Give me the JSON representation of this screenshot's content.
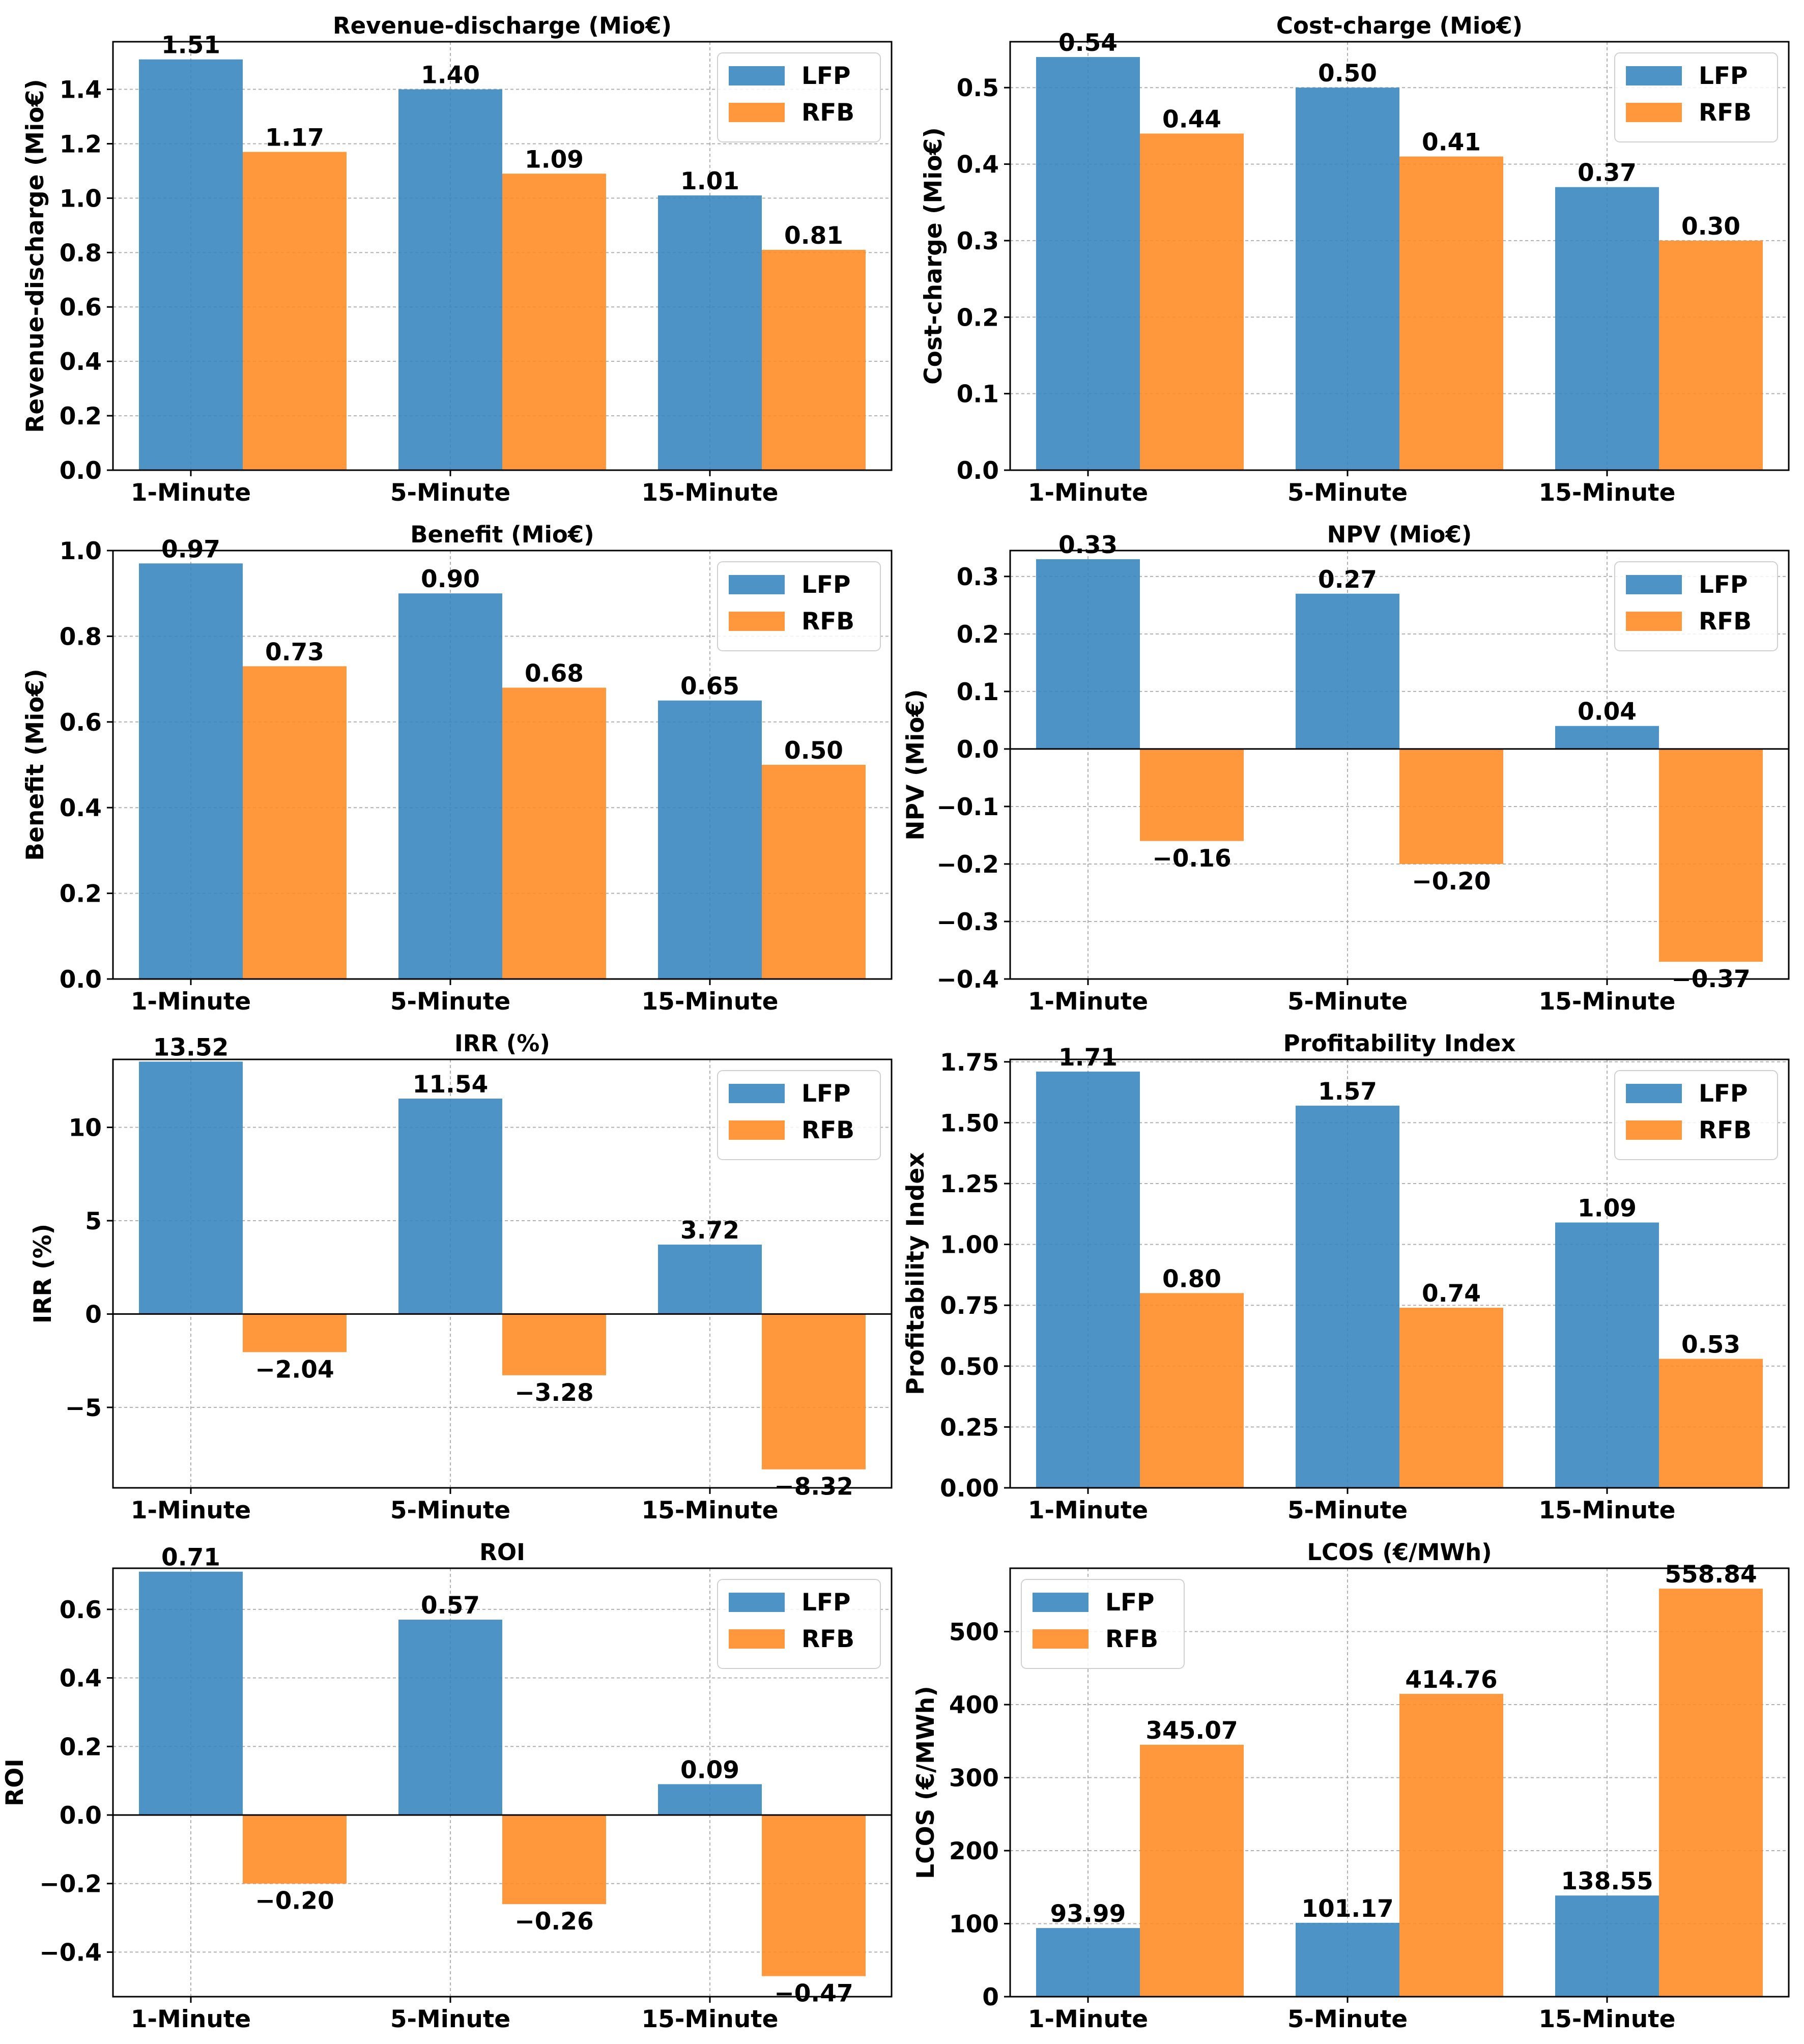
{
  "colors": {
    "lfp": "#3a87c0",
    "rfb": "#ff8c28",
    "grid": "#b0b0b0",
    "axis": "#000000"
  },
  "chart_data": [
    {
      "type": "bar",
      "title": "Revenue-discharge (Mio€)",
      "ylabel": "Revenue-discharge (Mio€)",
      "xlabel": "",
      "categories": [
        "1-Minute",
        "5-Minute",
        "15-Minute"
      ],
      "series": [
        {
          "name": "LFP",
          "values": [
            1.51,
            1.4,
            1.01
          ],
          "labels": [
            "1.51",
            "1.40",
            "1.01"
          ]
        },
        {
          "name": "RFB",
          "values": [
            1.17,
            1.09,
            0.81
          ],
          "labels": [
            "1.17",
            "1.09",
            "0.81"
          ]
        }
      ],
      "ylim": [
        0,
        1.575
      ],
      "yticks": [
        0.0,
        0.2,
        0.4,
        0.6,
        0.8,
        1.0,
        1.2,
        1.4
      ],
      "ytick_labels": [
        "0.0",
        "0.2",
        "0.4",
        "0.6",
        "0.8",
        "1.0",
        "1.2",
        "1.4"
      ],
      "legend": "top-right",
      "grid": true
    },
    {
      "type": "bar",
      "title": "Cost-charge (Mio€)",
      "ylabel": "Cost-charge (Mio€)",
      "xlabel": "",
      "categories": [
        "1-Minute",
        "5-Minute",
        "15-Minute"
      ],
      "series": [
        {
          "name": "LFP",
          "values": [
            0.54,
            0.5,
            0.37
          ],
          "labels": [
            "0.54",
            "0.50",
            "0.37"
          ]
        },
        {
          "name": "RFB",
          "values": [
            0.44,
            0.41,
            0.3
          ],
          "labels": [
            "0.44",
            "0.41",
            "0.30"
          ]
        }
      ],
      "ylim": [
        0,
        0.56
      ],
      "yticks": [
        0.0,
        0.1,
        0.2,
        0.3,
        0.4,
        0.5
      ],
      "ytick_labels": [
        "0.0",
        "0.1",
        "0.2",
        "0.3",
        "0.4",
        "0.5"
      ],
      "legend": "top-right",
      "grid": true
    },
    {
      "type": "bar",
      "title": "Benefit (Mio€)",
      "ylabel": "Benefit (Mio€)",
      "xlabel": "",
      "categories": [
        "1-Minute",
        "5-Minute",
        "15-Minute"
      ],
      "series": [
        {
          "name": "LFP",
          "values": [
            0.97,
            0.9,
            0.65
          ],
          "labels": [
            "0.97",
            "0.90",
            "0.65"
          ]
        },
        {
          "name": "RFB",
          "values": [
            0.73,
            0.68,
            0.5
          ],
          "labels": [
            "0.73",
            "0.68",
            "0.50"
          ]
        }
      ],
      "ylim": [
        0,
        1.0
      ],
      "yticks": [
        0.0,
        0.2,
        0.4,
        0.6,
        0.8,
        1.0
      ],
      "ytick_labels": [
        "0.0",
        "0.2",
        "0.4",
        "0.6",
        "0.8",
        "1.0"
      ],
      "legend": "top-right",
      "grid": true
    },
    {
      "type": "bar",
      "title": "NPV (Mio€)",
      "ylabel": "NPV (Mio€)",
      "xlabel": "",
      "categories": [
        "1-Minute",
        "5-Minute",
        "15-Minute"
      ],
      "series": [
        {
          "name": "LFP",
          "values": [
            0.33,
            0.27,
            0.04
          ],
          "labels": [
            "0.33",
            "0.27",
            "0.04"
          ]
        },
        {
          "name": "RFB",
          "values": [
            -0.16,
            -0.2,
            -0.37
          ],
          "labels": [
            "−0.16",
            "−0.20",
            "−0.37"
          ]
        }
      ],
      "ylim": [
        -0.4,
        0.345
      ],
      "yticks": [
        -0.4,
        -0.3,
        -0.2,
        -0.1,
        0.0,
        0.1,
        0.2,
        0.3
      ],
      "ytick_labels": [
        "−0.4",
        "−0.3",
        "−0.2",
        "−0.1",
        "0.0",
        "0.1",
        "0.2",
        "0.3"
      ],
      "legend": "top-right",
      "grid": true,
      "zero_line": true
    },
    {
      "type": "bar",
      "title": "IRR (%)",
      "ylabel": "IRR (%)",
      "xlabel": "",
      "categories": [
        "1-Minute",
        "5-Minute",
        "15-Minute"
      ],
      "series": [
        {
          "name": "LFP",
          "values": [
            13.52,
            11.54,
            3.72
          ],
          "labels": [
            "13.52",
            "11.54",
            "3.72"
          ]
        },
        {
          "name": "RFB",
          "values": [
            -2.04,
            -3.28,
            -8.32
          ],
          "labels": [
            "−2.04",
            "−3.28",
            "−8.32"
          ]
        }
      ],
      "ylim": [
        -9.31,
        13.64
      ],
      "yticks": [
        -5,
        0,
        5,
        10
      ],
      "ytick_labels": [
        "−5",
        "0",
        "5",
        "10"
      ],
      "legend": "top-right",
      "grid": true,
      "zero_line": true
    },
    {
      "type": "bar",
      "title": "Profitability Index",
      "ylabel": "Profitability Index",
      "xlabel": "",
      "categories": [
        "1-Minute",
        "5-Minute",
        "15-Minute"
      ],
      "series": [
        {
          "name": "LFP",
          "values": [
            1.71,
            1.57,
            1.09
          ],
          "labels": [
            "1.71",
            "1.57",
            "1.09"
          ]
        },
        {
          "name": "RFB",
          "values": [
            0.8,
            0.74,
            0.53
          ],
          "labels": [
            "0.80",
            "0.74",
            "0.53"
          ]
        }
      ],
      "ylim": [
        0,
        1.76
      ],
      "yticks": [
        0.0,
        0.25,
        0.5,
        0.75,
        1.0,
        1.25,
        1.5,
        1.75
      ],
      "ytick_labels": [
        "0.00",
        "0.25",
        "0.50",
        "0.75",
        "1.00",
        "1.25",
        "1.50",
        "1.75"
      ],
      "legend": "top-right",
      "grid": true
    },
    {
      "type": "bar",
      "title": "ROI",
      "ylabel": "ROI",
      "xlabel": "",
      "categories": [
        "1-Minute",
        "5-Minute",
        "15-Minute"
      ],
      "series": [
        {
          "name": "LFP",
          "values": [
            0.71,
            0.57,
            0.09
          ],
          "labels": [
            "0.71",
            "0.57",
            "0.09"
          ]
        },
        {
          "name": "RFB",
          "values": [
            -0.2,
            -0.26,
            -0.47
          ],
          "labels": [
            "−0.20",
            "−0.26",
            "−0.47"
          ]
        }
      ],
      "ylim": [
        -0.53,
        0.72
      ],
      "yticks": [
        -0.4,
        -0.2,
        0.0,
        0.2,
        0.4,
        0.6
      ],
      "ytick_labels": [
        "−0.4",
        "−0.2",
        "0.0",
        "0.2",
        "0.4",
        "0.6"
      ],
      "legend": "top-right",
      "grid": true,
      "zero_line": true
    },
    {
      "type": "bar",
      "title": "LCOS (€/MWh)",
      "ylabel": "LCOS (€/MWh)",
      "xlabel": "",
      "categories": [
        "1-Minute",
        "5-Minute",
        "15-Minute"
      ],
      "series": [
        {
          "name": "LFP",
          "values": [
            93.99,
            101.17,
            138.55
          ],
          "labels": [
            "93.99",
            "101.17",
            "138.55"
          ]
        },
        {
          "name": "RFB",
          "values": [
            345.07,
            414.76,
            558.84
          ],
          "labels": [
            "345.07",
            "414.76",
            "558.84"
          ]
        }
      ],
      "ylim": [
        0,
        586.8
      ],
      "yticks": [
        0,
        100,
        200,
        300,
        400,
        500
      ],
      "ytick_labels": [
        "0",
        "100",
        "200",
        "300",
        "400",
        "500"
      ],
      "legend": "top-left",
      "grid": true
    }
  ]
}
